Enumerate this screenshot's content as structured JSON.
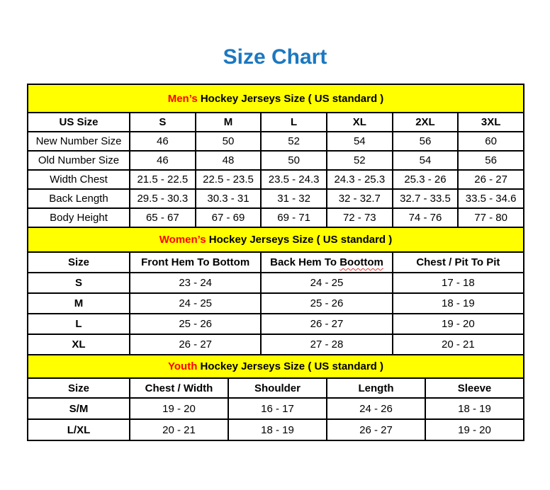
{
  "page": {
    "title": "Size Chart"
  },
  "colors": {
    "title_blue": "#1b78c0",
    "accent_red": "#ff0000",
    "banner_yellow": "#ffff00",
    "border_black": "#000000"
  },
  "tables": [
    {
      "id": "mens",
      "banner": {
        "highlight": "Men’s",
        "rest": " Hockey Jerseys Size ( US standard )"
      },
      "columns": [
        "US Size",
        "S",
        "M",
        "L",
        "XL",
        "2XL",
        "3XL"
      ],
      "rows": [
        [
          "New Number Size",
          "46",
          "50",
          "52",
          "54",
          "56",
          "60"
        ],
        [
          "Old Number Size",
          "46",
          "48",
          "50",
          "52",
          "54",
          "56"
        ],
        [
          "Width Chest",
          "21.5 - 22.5",
          "22.5 - 23.5",
          "23.5 - 24.3",
          "24.3 - 25.3",
          "25.3 - 26",
          "26 - 27"
        ],
        [
          "Back Length",
          "29.5 - 30.3",
          "30.3 - 31",
          "31 - 32",
          "32 - 32.7",
          "32.7 - 33.5",
          "33.5 - 34.6"
        ],
        [
          "Body Height",
          "65 - 67",
          "67 - 69",
          "69 - 71",
          "72 - 73",
          "74 - 76",
          "77 - 80"
        ]
      ]
    },
    {
      "id": "womens",
      "banner": {
        "highlight": "Women’s",
        "rest": " Hockey Jerseys Size ( US standard )"
      },
      "columns": [
        "Size",
        "Front Hem To Bottom",
        "Back Hem To Boottom",
        "Chest / Pit To Pit"
      ],
      "spellcheck_note": {
        "column_index": 2,
        "prefix": "Back Hem To",
        "underlined_word": "Boottom"
      },
      "rows": [
        [
          "S",
          "23 - 24",
          "24 - 25",
          "17 - 18"
        ],
        [
          "M",
          "24 - 25",
          "25 - 26",
          "18 - 19"
        ],
        [
          "L",
          "25 - 26",
          "26 - 27",
          "19 - 20"
        ],
        [
          "XL",
          "26 - 27",
          "27 - 28",
          "20 - 21"
        ]
      ]
    },
    {
      "id": "youth",
      "banner": {
        "highlight": "Youth",
        "rest": " Hockey Jerseys Size ( US standard )"
      },
      "columns": [
        "Size",
        "Chest / Width",
        "Shoulder",
        "Length",
        "Sleeve"
      ],
      "rows": [
        [
          "S/M",
          "19 - 20",
          "16 - 17",
          "24 - 26",
          "18 - 19"
        ],
        [
          "L/XL",
          "20 - 21",
          "18 - 19",
          "26 - 27",
          "19 - 20"
        ]
      ]
    }
  ]
}
